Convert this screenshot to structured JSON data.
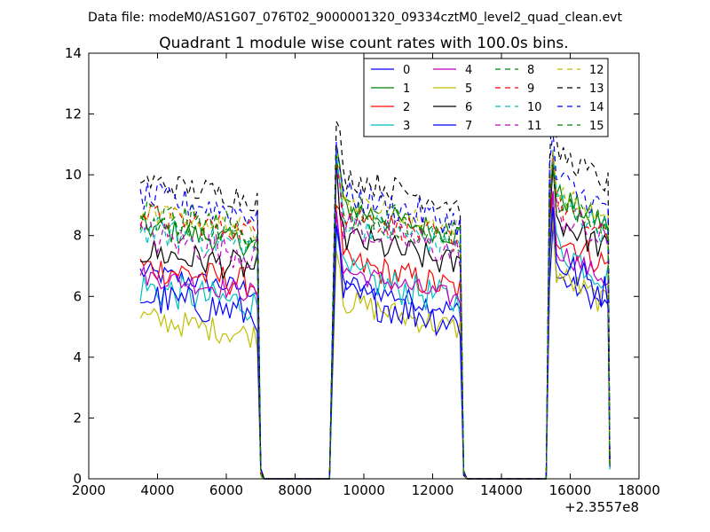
{
  "header": {
    "data_file": "Data file: modeM0/AS1G07_076T02_9000001320_09334cztM0_level2_quad_clean.evt"
  },
  "chart_data": {
    "type": "line",
    "title": "Quadrant 1 module wise count rates with 100.0s bins.",
    "xlabel": "",
    "ylabel": "",
    "x_offset_label": "+2.3557e8",
    "xlim": [
      2000,
      18000
    ],
    "ylim": [
      0,
      14
    ],
    "x_ticks": [
      2000,
      4000,
      6000,
      8000,
      10000,
      12000,
      14000,
      16000,
      18000
    ],
    "y_ticks": [
      0,
      2,
      4,
      6,
      8,
      10,
      12,
      14
    ],
    "x_tick_labels": [
      "2000",
      "4000",
      "6000",
      "8000",
      "10000",
      "12000",
      "14000",
      "16000",
      "18000"
    ],
    "y_tick_labels": [
      "0",
      "2",
      "4",
      "6",
      "8",
      "10",
      "12",
      "14"
    ],
    "grid": false,
    "legend": {
      "placement": "top-right",
      "columns": 4
    },
    "segments": [
      {
        "start": 3500,
        "end": 6900,
        "fall_end": 7000
      },
      {
        "rise_start": 9000,
        "start": 9200,
        "end": 12800,
        "fall_end": 12900
      },
      {
        "rise_start": 15300,
        "start": 15400,
        "end": 17100,
        "fall_end": 17150
      }
    ],
    "series": [
      {
        "name": "0",
        "color": "#0000ff",
        "dash": "solid",
        "levels": [
          6.8,
          6.5,
          6.8
        ]
      },
      {
        "name": "1",
        "color": "#008000",
        "dash": "solid",
        "levels": [
          8.3,
          9.0,
          9.5
        ]
      },
      {
        "name": "2",
        "color": "#ff0000",
        "dash": "solid",
        "levels": [
          7.0,
          7.2,
          8.2
        ]
      },
      {
        "name": "3",
        "color": "#00bfbf",
        "dash": "solid",
        "levels": [
          6.3,
          6.8,
          7.8
        ]
      },
      {
        "name": "4",
        "color": "#bf00bf",
        "dash": "solid",
        "levels": [
          6.7,
          6.9,
          7.7
        ]
      },
      {
        "name": "5",
        "color": "#bfbf00",
        "dash": "solid",
        "levels": [
          5.3,
          5.9,
          6.9
        ]
      },
      {
        "name": "6",
        "color": "#000000",
        "dash": "solid",
        "levels": [
          7.5,
          8.0,
          8.7
        ]
      },
      {
        "name": "7",
        "color": "#0000ff",
        "dash": "solid",
        "levels": [
          6.0,
          6.1,
          7.3
        ]
      },
      {
        "name": "8",
        "color": "#008000",
        "dash": "dashed",
        "levels": [
          8.5,
          8.7,
          9.3
        ]
      },
      {
        "name": "9",
        "color": "#ff0000",
        "dash": "dashed",
        "levels": [
          8.7,
          8.8,
          9.1
        ]
      },
      {
        "name": "10",
        "color": "#00bfbf",
        "dash": "dashed",
        "levels": [
          8.2,
          8.6,
          9.3
        ]
      },
      {
        "name": "11",
        "color": "#bf00bf",
        "dash": "dashed",
        "levels": [
          8.0,
          8.4,
          8.9
        ]
      },
      {
        "name": "12",
        "color": "#bfbf00",
        "dash": "dashed",
        "levels": [
          8.8,
          9.2,
          9.6
        ]
      },
      {
        "name": "13",
        "color": "#000000",
        "dash": "dashed",
        "levels": [
          9.8,
          10.0,
          10.9
        ]
      },
      {
        "name": "14",
        "color": "#0000ff",
        "dash": "dashed",
        "levels": [
          9.3,
          9.4,
          10.0
        ]
      },
      {
        "name": "15",
        "color": "#008000",
        "dash": "dashed",
        "levels": [
          8.7,
          8.9,
          9.4
        ]
      }
    ]
  }
}
